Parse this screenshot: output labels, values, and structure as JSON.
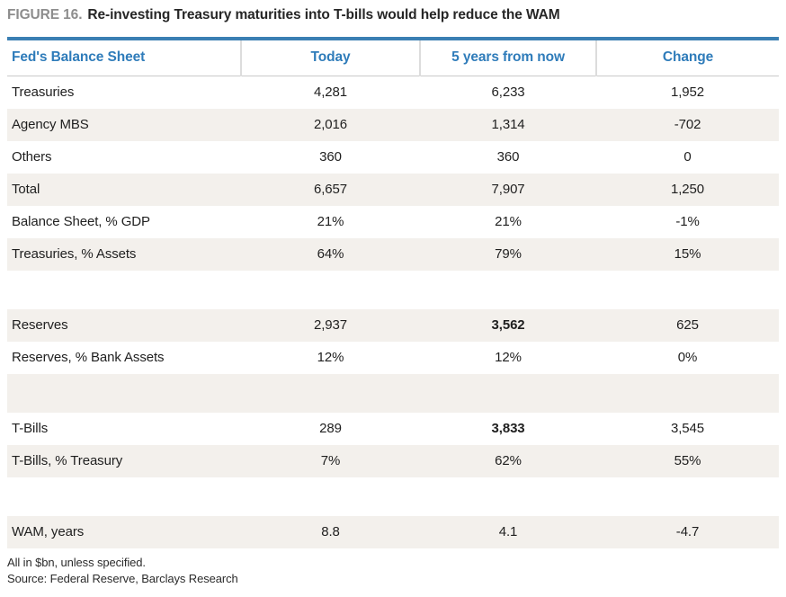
{
  "figure": {
    "label": "FIGURE 16.",
    "title": "Re-investing Treasury maturities into T-bills would help reduce the WAM"
  },
  "table": {
    "columns": [
      "Fed's Balance Sheet",
      "Today",
      "5 years from now",
      "Change"
    ],
    "rows": [
      {
        "label": "Treasuries",
        "today": "4,281",
        "future": "6,233",
        "change": "1,952"
      },
      {
        "label": "Agency MBS",
        "today": "2,016",
        "future": "1,314",
        "change": "-702"
      },
      {
        "label": "Others",
        "today": "360",
        "future": "360",
        "change": "0"
      },
      {
        "label": "Total",
        "today": "6,657",
        "future": "7,907",
        "change": "1,250"
      },
      {
        "label": "Balance Sheet, % GDP",
        "today": "21%",
        "future": "21%",
        "change": "-1%"
      },
      {
        "label": "Treasuries, % Assets",
        "today": "64%",
        "future": "79%",
        "change": "15%"
      },
      {
        "spacer": true
      },
      {
        "label": "Reserves",
        "today": "2,937",
        "future": "3,562",
        "change": "625",
        "future_bold": true
      },
      {
        "label": "Reserves, % Bank Assets",
        "today": "12%",
        "future": "12%",
        "change": "0%"
      },
      {
        "spacer": true
      },
      {
        "label": "T-Bills",
        "today": "289",
        "future": "3,833",
        "change": "3,545",
        "future_bold": true
      },
      {
        "label": "T-Bills, % Treasury",
        "today": "7%",
        "future": "62%",
        "change": "55%"
      },
      {
        "spacer": true
      },
      {
        "label": "WAM, years",
        "today": "8.8",
        "future": "4.1",
        "change": "-4.7"
      }
    ]
  },
  "footnotes": [
    "All in $bn, unless specified.",
    "Source: Federal Reserve, Barclays Research"
  ],
  "colors": {
    "accent_bar_blue": "#3a7fb3",
    "header_text_blue": "#2f7cba",
    "row_alt_beige": "#f3f0ec",
    "title_label_gray": "#8d8d8d",
    "title_text": "#262626",
    "rule_gray": "#c9c9c9"
  }
}
